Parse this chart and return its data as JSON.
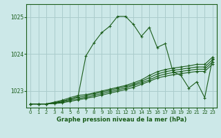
{
  "title": "Graphe pression niveau de la mer (hPa)",
  "bg_color": "#cce8e8",
  "grid_color": "#aacccc",
  "line_color": "#1a5c1a",
  "ylim": [
    1022.55,
    1025.35
  ],
  "xlim": [
    -0.5,
    23.5
  ],
  "yticks": [
    1023,
    1024,
    1025
  ],
  "xticks": [
    0,
    1,
    2,
    3,
    4,
    5,
    6,
    7,
    8,
    9,
    10,
    11,
    12,
    13,
    14,
    15,
    16,
    17,
    18,
    19,
    20,
    21,
    22,
    23
  ],
  "series": [
    [
      1022.65,
      1022.65,
      1022.65,
      1022.68,
      1022.72,
      1022.78,
      1022.85,
      1023.95,
      1024.3,
      1024.58,
      1024.75,
      1025.02,
      1025.02,
      1024.8,
      1024.48,
      1024.72,
      1024.18,
      1024.28,
      1023.52,
      1023.42,
      1023.08,
      1023.25,
      1022.82,
      1023.88
    ],
    [
      1022.65,
      1022.65,
      1022.65,
      1022.7,
      1022.75,
      1022.82,
      1022.88,
      1022.9,
      1022.95,
      1023.0,
      1023.05,
      1023.1,
      1023.15,
      1023.22,
      1023.3,
      1023.42,
      1023.52,
      1023.58,
      1023.62,
      1023.65,
      1023.68,
      1023.72,
      1023.72,
      1023.92
    ],
    [
      1022.65,
      1022.65,
      1022.65,
      1022.68,
      1022.72,
      1022.78,
      1022.83,
      1022.87,
      1022.92,
      1022.97,
      1023.02,
      1023.07,
      1023.12,
      1023.18,
      1023.26,
      1023.36,
      1023.46,
      1023.52,
      1023.56,
      1023.59,
      1023.62,
      1023.65,
      1023.65,
      1023.85
    ],
    [
      1022.65,
      1022.65,
      1022.65,
      1022.67,
      1022.7,
      1022.75,
      1022.79,
      1022.83,
      1022.88,
      1022.93,
      1022.98,
      1023.03,
      1023.08,
      1023.15,
      1023.22,
      1023.3,
      1023.4,
      1023.46,
      1023.5,
      1023.53,
      1023.56,
      1023.59,
      1023.59,
      1023.79
    ],
    [
      1022.65,
      1022.65,
      1022.65,
      1022.66,
      1022.68,
      1022.72,
      1022.76,
      1022.8,
      1022.84,
      1022.89,
      1022.94,
      1022.99,
      1023.04,
      1023.1,
      1023.18,
      1023.26,
      1023.35,
      1023.4,
      1023.44,
      1023.47,
      1023.5,
      1023.53,
      1023.53,
      1023.73
    ]
  ]
}
